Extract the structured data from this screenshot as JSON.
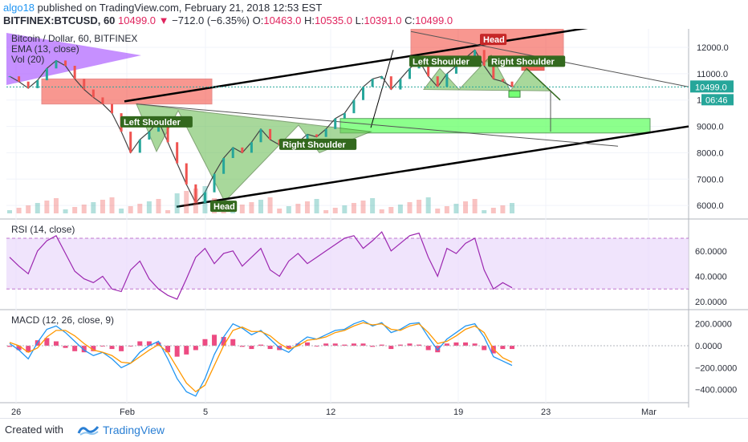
{
  "header": {
    "user": "algo18",
    "published": "published on TradingView.com, February 21, 2018 12:53 EST",
    "symbol": "BITFINEX:BTCUSD, 60",
    "last": "10499.0",
    "change": "−712.0 (−6.35%)",
    "o_label": "O:",
    "o_value": "10463.0",
    "h_label": "H:",
    "h_value": "10535.0",
    "l_label": "L:",
    "l_value": "10391.0",
    "c_label": "C:",
    "c_value": "10499.0"
  },
  "footer": {
    "created_with": "Created with",
    "brand": "TradingView"
  },
  "colors": {
    "candle_up": "#26a69a",
    "candle_down": "#ef5350",
    "rsi": "#9c27b0",
    "macd_line": "#2196f3",
    "signal_line": "#ff9800",
    "hist": "#e91e63",
    "green_zone": "#66ff66",
    "red_zone": "#f44336",
    "pattern_fill": "#6fbf5a",
    "purple_flag": "#b36bff"
  },
  "chart_data": [
    {
      "type": "line",
      "title": "Bitcoin / Dollar, 60, BITFINEX",
      "indicators": [
        "EMA (13, close)",
        "Vol (20)"
      ],
      "ylim": [
        5700,
        12700
      ],
      "y_ticks": [
        "12000.0",
        "11000.0",
        "10000.0",
        "9000.0",
        "8000.0",
        "7000.0",
        "6000.0"
      ],
      "y_tick_values": [
        12000,
        11000,
        10000,
        9000,
        8000,
        7000,
        6000
      ],
      "x_ticks": [
        "26",
        "Feb",
        "5",
        "12",
        "19",
        "23",
        "Mar"
      ],
      "last_price_label": "10499.0",
      "countdown_label": "06:46",
      "series": [
        {
          "values": [
            10900,
            10700,
            10450,
            10750,
            11200,
            11500,
            11300,
            10800,
            10400,
            10100,
            9850,
            9500,
            8800,
            8000,
            8500,
            8800,
            9200,
            8400,
            7600,
            6800,
            6100,
            6500,
            7200,
            7800,
            8200,
            8000,
            8400,
            8900,
            8500,
            8300,
            8150,
            8400,
            8700,
            8600,
            8900,
            9300,
            9500,
            10000,
            10500,
            10800,
            10900,
            10400,
            10800,
            11200,
            11500,
            10900,
            10500,
            11000,
            11300,
            11600,
            11900,
            11300,
            10800,
            10700,
            10499
          ]
        }
      ],
      "annotations": [
        "Left Shoulder",
        "Head",
        "Right Shoulder",
        "Left Shoulder",
        "Head",
        "Right Shoulder"
      ]
    },
    {
      "type": "line",
      "title": "RSI (14, close)",
      "ylim": [
        15,
        82
      ],
      "y_ticks": [
        "60.0000",
        "40.0000",
        "20.0000"
      ],
      "y_tick_values": [
        60,
        40,
        20
      ],
      "band": [
        30,
        70
      ],
      "series": [
        {
          "values": [
            55,
            48,
            42,
            60,
            68,
            72,
            58,
            44,
            38,
            35,
            40,
            30,
            28,
            45,
            52,
            38,
            30,
            25,
            22,
            38,
            55,
            62,
            50,
            58,
            60,
            48,
            55,
            62,
            45,
            40,
            52,
            58,
            50,
            55,
            60,
            65,
            70,
            72,
            62,
            68,
            75,
            60,
            66,
            72,
            74,
            55,
            40,
            62,
            58,
            66,
            70,
            45,
            30,
            35,
            31
          ]
        }
      ]
    },
    {
      "type": "line",
      "title": "MACD (12, 26, close, 9)",
      "ylim": [
        -520,
        300
      ],
      "y_ticks": [
        "200.0000",
        "0.0000",
        "−200.0000",
        "−400.0000"
      ],
      "y_tick_values": [
        200,
        0,
        -200,
        -400
      ],
      "series": [
        {
          "name": "MACD",
          "values": [
            20,
            -40,
            -120,
            30,
            150,
            180,
            120,
            40,
            -40,
            -90,
            -60,
            -120,
            -200,
            -160,
            -60,
            0,
            40,
            -120,
            -300,
            -420,
            -460,
            -300,
            -80,
            80,
            200,
            160,
            100,
            140,
            60,
            -20,
            -60,
            20,
            80,
            60,
            100,
            140,
            150,
            200,
            230,
            180,
            210,
            120,
            150,
            200,
            210,
            80,
            -40,
            60,
            120,
            180,
            200,
            80,
            -100,
            -140,
            -180
          ]
        },
        {
          "name": "Signal",
          "values": [
            30,
            0,
            -60,
            -20,
            80,
            140,
            140,
            90,
            20,
            -40,
            -60,
            -90,
            -150,
            -160,
            -100,
            -40,
            10,
            -60,
            -200,
            -340,
            -420,
            -360,
            -180,
            0,
            140,
            170,
            130,
            130,
            90,
            20,
            -30,
            0,
            50,
            60,
            80,
            120,
            140,
            180,
            210,
            190,
            200,
            150,
            140,
            180,
            200,
            120,
            20,
            40,
            90,
            150,
            180,
            120,
            -30,
            -110,
            -150
          ]
        }
      ]
    }
  ]
}
